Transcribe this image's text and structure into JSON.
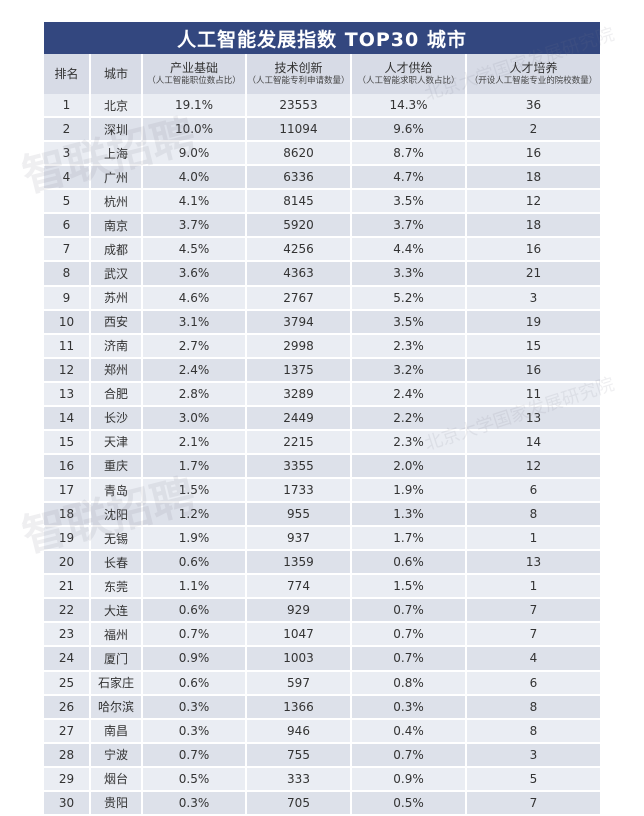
{
  "title": "人工智能发展指数 TOP30 城市",
  "headers": [
    {
      "main": "排名",
      "sub": ""
    },
    {
      "main": "城市",
      "sub": ""
    },
    {
      "main": "产业基础",
      "sub": "（人工智能职位数占比）"
    },
    {
      "main": "技术创新",
      "sub": "（人工智能专利申请数量）"
    },
    {
      "main": "人才供给",
      "sub": "（人工智能求职人数占比）"
    },
    {
      "main": "人才培养",
      "sub": "（开设人工智能专业的院校数量）"
    }
  ],
  "rows": [
    [
      "1",
      "北京",
      "19.1%",
      "23553",
      "14.3%",
      "36"
    ],
    [
      "2",
      "深圳",
      "10.0%",
      "11094",
      "9.6%",
      "2"
    ],
    [
      "3",
      "上海",
      "9.0%",
      "8620",
      "8.7%",
      "16"
    ],
    [
      "4",
      "广州",
      "4.0%",
      "6336",
      "4.7%",
      "18"
    ],
    [
      "5",
      "杭州",
      "4.1%",
      "8145",
      "3.5%",
      "12"
    ],
    [
      "6",
      "南京",
      "3.7%",
      "5920",
      "3.7%",
      "18"
    ],
    [
      "7",
      "成都",
      "4.5%",
      "4256",
      "4.4%",
      "16"
    ],
    [
      "8",
      "武汉",
      "3.6%",
      "4363",
      "3.3%",
      "21"
    ],
    [
      "9",
      "苏州",
      "4.6%",
      "2767",
      "5.2%",
      "3"
    ],
    [
      "10",
      "西安",
      "3.1%",
      "3794",
      "3.5%",
      "19"
    ],
    [
      "11",
      "济南",
      "2.7%",
      "2998",
      "2.3%",
      "15"
    ],
    [
      "12",
      "郑州",
      "2.4%",
      "1375",
      "3.2%",
      "16"
    ],
    [
      "13",
      "合肥",
      "2.8%",
      "3289",
      "2.4%",
      "11"
    ],
    [
      "14",
      "长沙",
      "3.0%",
      "2449",
      "2.2%",
      "13"
    ],
    [
      "15",
      "天津",
      "2.1%",
      "2215",
      "2.3%",
      "14"
    ],
    [
      "16",
      "重庆",
      "1.7%",
      "3355",
      "2.0%",
      "12"
    ],
    [
      "17",
      "青岛",
      "1.5%",
      "1733",
      "1.9%",
      "6"
    ],
    [
      "18",
      "沈阳",
      "1.2%",
      "955",
      "1.3%",
      "8"
    ],
    [
      "19",
      "无锡",
      "1.9%",
      "937",
      "1.7%",
      "1"
    ],
    [
      "20",
      "长春",
      "0.6%",
      "1359",
      "0.6%",
      "13"
    ],
    [
      "21",
      "东莞",
      "1.1%",
      "774",
      "1.5%",
      "1"
    ],
    [
      "22",
      "大连",
      "0.6%",
      "929",
      "0.7%",
      "7"
    ],
    [
      "23",
      "福州",
      "0.7%",
      "1047",
      "0.7%",
      "7"
    ],
    [
      "24",
      "厦门",
      "0.9%",
      "1003",
      "0.7%",
      "4"
    ],
    [
      "25",
      "石家庄",
      "0.6%",
      "597",
      "0.8%",
      "6"
    ],
    [
      "26",
      "哈尔滨",
      "0.3%",
      "1366",
      "0.3%",
      "8"
    ],
    [
      "27",
      "南昌",
      "0.3%",
      "946",
      "0.4%",
      "8"
    ],
    [
      "28",
      "宁波",
      "0.7%",
      "755",
      "0.7%",
      "3"
    ],
    [
      "29",
      "烟台",
      "0.5%",
      "333",
      "0.9%",
      "5"
    ],
    [
      "30",
      "贵阳",
      "0.3%",
      "705",
      "0.5%",
      "7"
    ]
  ],
  "watermarks": [
    "智联招聘",
    "北京大学国家发展研究院"
  ]
}
